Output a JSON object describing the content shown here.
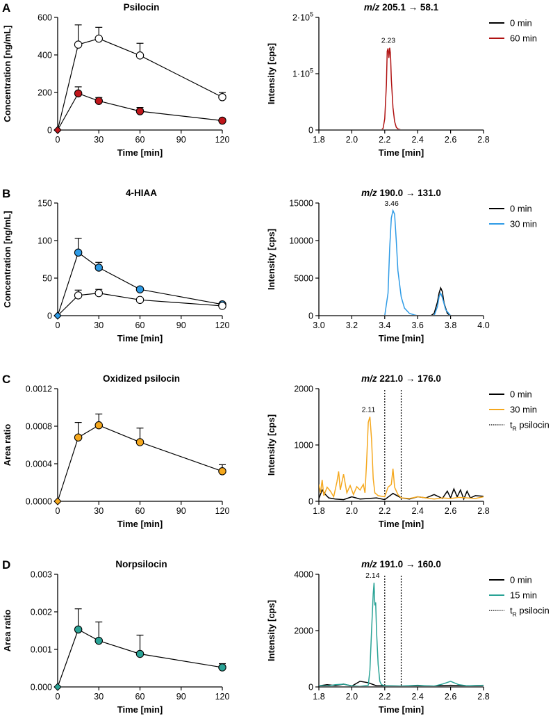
{
  "chart_data": [
    {
      "panel": "A",
      "type": "line",
      "title": "Psilocin",
      "xlabel": "Time [min]",
      "ylabel": "Concentration [ng/mL]",
      "xlim": [
        0,
        120
      ],
      "ylim": [
        0,
        600
      ],
      "xticks": [
        0,
        30,
        60,
        90,
        120
      ],
      "yticks": [
        0,
        200,
        400,
        600
      ],
      "series": [
        {
          "name": "open",
          "color": "#ffffff",
          "x": [
            0,
            15,
            30,
            60,
            120
          ],
          "y": [
            0,
            455,
            487,
            397,
            175
          ],
          "err": [
            0,
            105,
            60,
            65,
            25
          ]
        },
        {
          "name": "filled",
          "color": "#c0161b",
          "x": [
            0,
            15,
            30,
            60,
            120
          ],
          "y": [
            0,
            195,
            155,
            100,
            50
          ],
          "err": [
            0,
            35,
            18,
            20,
            0
          ]
        }
      ]
    },
    {
      "panel": "A",
      "type": "line",
      "title_mz": "m/z",
      "title_rest": " 205.1 → 58.1",
      "xlabel": "Time [min]",
      "ylabel": "Intensity [cps]",
      "xlim": [
        1.8,
        2.8
      ],
      "ylim": [
        0,
        200000
      ],
      "xticks": [
        "1.8",
        "2.0",
        "2.2",
        "2.4",
        "2.6",
        "2.8"
      ],
      "ytick_labels": [
        {
          "value": 0,
          "base": "0",
          "exp": ""
        },
        {
          "value": 100000,
          "base": "1·10",
          "exp": "5"
        },
        {
          "value": 200000,
          "base": "2·10",
          "exp": "5"
        }
      ],
      "peak_label": "2.23",
      "legend": [
        {
          "label": "0 min",
          "color": "#000000"
        },
        {
          "label": "60 min",
          "color": "#b01212"
        }
      ],
      "series": [
        {
          "name": "0 min",
          "color": "#000000",
          "x": [
            1.8,
            2.8
          ],
          "y": [
            0,
            0
          ]
        },
        {
          "name": "60 min",
          "color": "#b01212",
          "x": [
            1.8,
            2.18,
            2.19,
            2.2,
            2.21,
            2.215,
            2.22,
            2.225,
            2.23,
            2.235,
            2.24,
            2.25,
            2.26,
            2.27,
            2.28,
            2.3,
            2.8
          ],
          "y": [
            0,
            0,
            3000,
            20000,
            80000,
            140000,
            145000,
            128000,
            146000,
            135000,
            90000,
            40000,
            15000,
            5000,
            2000,
            0,
            0
          ]
        }
      ]
    },
    {
      "panel": "B",
      "type": "line",
      "title": "4-HIAA",
      "xlabel": "Time [min]",
      "ylabel": "Concentration [ng/mL]",
      "xlim": [
        0,
        120
      ],
      "ylim": [
        0,
        150
      ],
      "xticks": [
        0,
        30,
        60,
        90,
        120
      ],
      "yticks": [
        0,
        50,
        100,
        150
      ],
      "series": [
        {
          "name": "filled",
          "color": "#2e9be6",
          "x": [
            0,
            15,
            30,
            60,
            120
          ],
          "y": [
            0,
            84,
            64,
            35,
            15
          ],
          "err": [
            0,
            19,
            7,
            0,
            0
          ]
        },
        {
          "name": "open",
          "color": "#ffffff",
          "x": [
            0,
            15,
            30,
            60,
            120
          ],
          "y": [
            0,
            27,
            30,
            21,
            13
          ],
          "err": [
            0,
            7,
            5,
            0,
            0
          ]
        }
      ]
    },
    {
      "panel": "B",
      "type": "line",
      "title_mz": "m/z",
      "title_rest": " 190.0 → 131.0",
      "xlabel": "Time [min]",
      "ylabel": "Intensity [cps]",
      "xlim": [
        3.0,
        4.0
      ],
      "ylim": [
        0,
        15000
      ],
      "xticks": [
        "3.0",
        "3.2",
        "3.4",
        "3.6",
        "3.8",
        "4.0"
      ],
      "yticks": [
        0,
        5000,
        10000,
        15000
      ],
      "peak_label": "3.46",
      "legend": [
        {
          "label": "0 min",
          "color": "#000000"
        },
        {
          "label": "30 min",
          "color": "#2e9be6"
        }
      ],
      "series": [
        {
          "name": "0 min",
          "color": "#000000",
          "x": [
            3.0,
            3.68,
            3.7,
            3.72,
            3.73,
            3.74,
            3.75,
            3.76,
            3.78,
            3.8,
            4.0
          ],
          "y": [
            0,
            0,
            300,
            1800,
            3000,
            3700,
            3200,
            1700,
            300,
            0,
            0
          ]
        },
        {
          "name": "30 min",
          "color": "#2e9be6",
          "x": [
            3.0,
            3.4,
            3.42,
            3.43,
            3.44,
            3.45,
            3.46,
            3.47,
            3.48,
            3.5,
            3.52,
            3.55,
            3.58,
            3.6,
            3.7,
            3.72,
            3.73,
            3.74,
            3.75,
            3.77,
            3.8,
            4.0
          ],
          "y": [
            0,
            0,
            3000,
            9000,
            13000,
            14000,
            13500,
            10000,
            6000,
            2500,
            1000,
            300,
            100,
            0,
            0,
            1200,
            2500,
            3000,
            2400,
            800,
            0,
            0
          ]
        }
      ]
    },
    {
      "panel": "C",
      "type": "line",
      "title": "Oxidized psilocin",
      "xlabel": "Time [min]",
      "ylabel": "Area ratio",
      "xlim": [
        0,
        120
      ],
      "ylim": [
        0,
        0.0012
      ],
      "xticks": [
        0,
        30,
        60,
        90,
        120
      ],
      "ytick_labels": [
        "0.0000",
        "0.0004",
        "0.0008",
        "0.0012"
      ],
      "series": [
        {
          "name": "filled",
          "color": "#f5a81e",
          "x": [
            0,
            15,
            30,
            60,
            120
          ],
          "y": [
            0,
            0.00068,
            0.00081,
            0.00063,
            0.00032
          ],
          "err": [
            0,
            0.00016,
            0.00012,
            0.00015,
            7e-05
          ]
        }
      ]
    },
    {
      "panel": "C",
      "type": "line",
      "title_mz": "m/z",
      "title_rest": " 221.0 → 176.0",
      "xlabel": "Time [min]",
      "ylabel": "Intensity [cps]",
      "xlim": [
        1.8,
        2.8
      ],
      "ylim": [
        0,
        2000
      ],
      "xticks": [
        "1.8",
        "2.0",
        "2.2",
        "2.4",
        "2.6",
        "2.8"
      ],
      "yticks": [
        0,
        1000,
        2000
      ],
      "peak_label": "2.11",
      "vlines": [
        2.2,
        2.3
      ],
      "legend": [
        {
          "label": "0 min",
          "color": "#000000",
          "style": "solid"
        },
        {
          "label": "30 min",
          "color": "#f5a81e",
          "style": "solid"
        },
        {
          "label": "t",
          "sub": "R",
          "rest": " psilocin",
          "color": "#000000",
          "style": "dotted"
        }
      ],
      "series": [
        {
          "name": "0 min",
          "color": "#000000",
          "x": [
            1.8,
            1.82,
            1.84,
            1.86,
            1.9,
            1.95,
            2.0,
            2.05,
            2.1,
            2.15,
            2.2,
            2.25,
            2.3,
            2.35,
            2.4,
            2.45,
            2.5,
            2.55,
            2.58,
            2.6,
            2.62,
            2.64,
            2.66,
            2.68,
            2.7,
            2.72,
            2.75,
            2.8
          ],
          "y": [
            50,
            200,
            120,
            60,
            40,
            30,
            80,
            40,
            50,
            60,
            30,
            140,
            60,
            40,
            80,
            60,
            120,
            50,
            180,
            60,
            220,
            80,
            200,
            40,
            180,
            60,
            100,
            90
          ]
        },
        {
          "name": "30 min",
          "color": "#f5a81e",
          "x": [
            1.8,
            1.81,
            1.82,
            1.83,
            1.85,
            1.87,
            1.89,
            1.91,
            1.92,
            1.93,
            1.95,
            1.97,
            1.99,
            2.01,
            2.03,
            2.05,
            2.07,
            2.08,
            2.09,
            2.1,
            2.11,
            2.12,
            2.13,
            2.14,
            2.16,
            2.18,
            2.2,
            2.22,
            2.24,
            2.25,
            2.26,
            2.28,
            2.3,
            2.35,
            2.4,
            2.45,
            2.5,
            2.55,
            2.6,
            2.65,
            2.7,
            2.75,
            2.8
          ],
          "y": [
            300,
            150,
            380,
            100,
            250,
            180,
            80,
            350,
            530,
            200,
            480,
            150,
            280,
            120,
            260,
            200,
            300,
            150,
            700,
            1400,
            1500,
            1100,
            400,
            150,
            100,
            90,
            80,
            250,
            300,
            580,
            250,
            120,
            60,
            50,
            80,
            60,
            40,
            60,
            50,
            70,
            60,
            50,
            80
          ]
        }
      ]
    },
    {
      "panel": "D",
      "type": "line",
      "title": "Norpsilocin",
      "xlabel": "Time [min]",
      "ylabel": "Area ratio",
      "xlim": [
        0,
        120
      ],
      "ylim": [
        0,
        0.003
      ],
      "xticks": [
        0,
        30,
        60,
        90,
        120
      ],
      "ytick_labels": [
        "0.000",
        "0.001",
        "0.002",
        "0.003"
      ],
      "series": [
        {
          "name": "filled",
          "color": "#2aa396",
          "x": [
            0,
            15,
            30,
            60,
            120
          ],
          "y": [
            0,
            0.00153,
            0.00123,
            0.00088,
            0.00052
          ],
          "err": [
            0,
            0.00055,
            0.0005,
            0.0005,
            0.0001
          ]
        }
      ]
    },
    {
      "panel": "D",
      "type": "line",
      "title_mz": "m/z",
      "title_rest": " 191.0 → 160.0",
      "xlabel": "Time [min]",
      "ylabel": "Intensity [cps]",
      "xlim": [
        1.8,
        2.8
      ],
      "ylim": [
        0,
        4000
      ],
      "xticks": [
        "1.8",
        "2.0",
        "2.2",
        "2.4",
        "2.6",
        "2.8"
      ],
      "yticks": [
        0,
        2000,
        4000
      ],
      "peak_label": "2.14",
      "vlines": [
        2.2,
        2.3
      ],
      "legend": [
        {
          "label": "0 min",
          "color": "#000000",
          "style": "solid"
        },
        {
          "label": "15 min",
          "color": "#2aa396",
          "style": "solid"
        },
        {
          "label": "t",
          "sub": "R",
          "rest": " psilocin",
          "color": "#000000",
          "style": "dotted"
        }
      ],
      "series": [
        {
          "name": "0 min",
          "color": "#000000",
          "x": [
            1.8,
            1.85,
            1.9,
            1.95,
            2.0,
            2.05,
            2.1,
            2.15,
            2.2,
            2.3,
            2.4,
            2.5,
            2.6,
            2.7,
            2.8
          ],
          "y": [
            40,
            80,
            50,
            100,
            30,
            200,
            150,
            40,
            40,
            30,
            40,
            30,
            60,
            40,
            50
          ]
        },
        {
          "name": "15 min",
          "color": "#2aa396",
          "x": [
            1.8,
            1.85,
            1.9,
            1.95,
            2.0,
            2.05,
            2.1,
            2.11,
            2.12,
            2.13,
            2.135,
            2.14,
            2.145,
            2.15,
            2.16,
            2.17,
            2.18,
            2.2,
            2.3,
            2.4,
            2.45,
            2.5,
            2.55,
            2.6,
            2.65,
            2.7,
            2.8
          ],
          "y": [
            50,
            30,
            80,
            100,
            40,
            20,
            60,
            600,
            2000,
            3300,
            3700,
            2900,
            3000,
            2000,
            800,
            200,
            80,
            40,
            30,
            60,
            40,
            30,
            100,
            200,
            80,
            40,
            60
          ]
        }
      ]
    }
  ]
}
